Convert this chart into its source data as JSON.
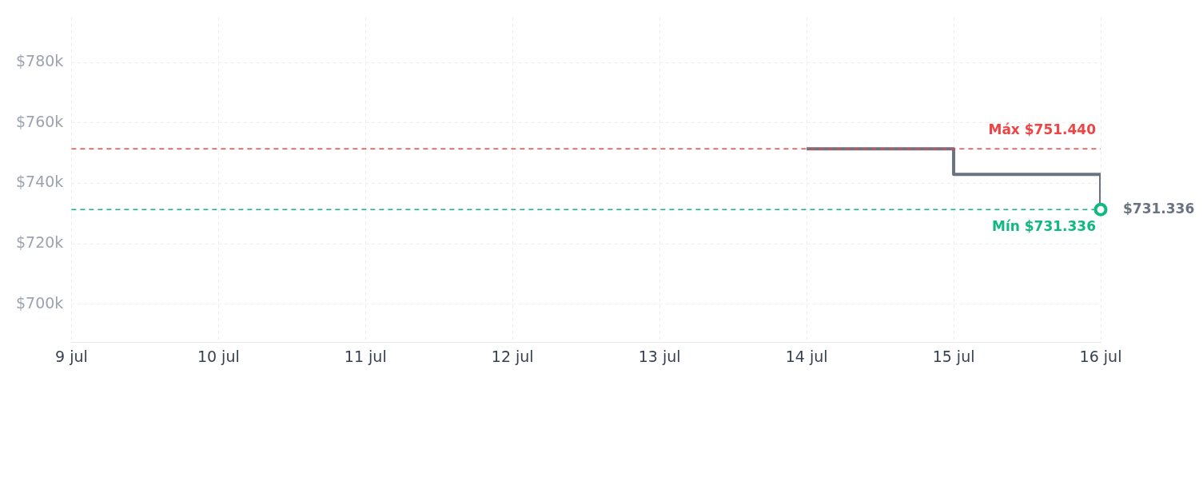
{
  "chart_data": {
    "type": "step",
    "x": [
      "--07-14",
      "--07-15",
      "--07-16"
    ],
    "series": [
      {
        "color": "#6b7280",
        "values": [
          751440,
          743000,
          731336
        ]
      }
    ],
    "xlim": [
      "--07-09",
      "--07-16"
    ],
    "xticks": [
      {
        "value": "--07-09",
        "label": "9 jul"
      },
      {
        "value": "--07-10",
        "label": "10 jul"
      },
      {
        "value": "--07-11",
        "label": "11 jul"
      },
      {
        "value": "--07-12",
        "label": "12 jul"
      },
      {
        "value": "--07-13",
        "label": "13 jul"
      },
      {
        "value": "--07-14",
        "label": "14 jul"
      },
      {
        "value": "--07-15",
        "label": "15 jul"
      },
      {
        "value": "--07-16",
        "label": "16 jul"
      }
    ],
    "ylim": [
      687500,
      795000
    ],
    "yticks": [
      {
        "value": 700000,
        "label": "$700k"
      },
      {
        "value": 720000,
        "label": "$720k"
      },
      {
        "value": 740000,
        "label": "$740k"
      },
      {
        "value": 760000,
        "label": "$760k"
      },
      {
        "value": 780000,
        "label": "$780k"
      }
    ],
    "ref_lines": [
      {
        "axis": "y",
        "value": 751440,
        "label": "Máx $751.440",
        "color": "#ef4444",
        "line_style": "dashed"
      },
      {
        "axis": "y",
        "value": 731336,
        "label": "Mín $731.336",
        "color": "#10b981",
        "line_style": "dashed"
      }
    ],
    "annotations": [
      {
        "text": "$731.336",
        "x": "--07-16",
        "y": 731336
      }
    ],
    "grid": true,
    "legend": false,
    "line_style": "solid"
  }
}
